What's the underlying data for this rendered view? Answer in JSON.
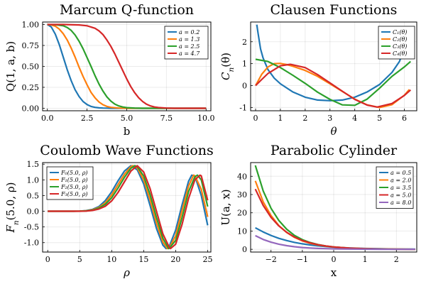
{
  "colors": [
    "#1f77b4",
    "#ff7f0e",
    "#2ca02c",
    "#d62728",
    "#9467bd"
  ],
  "chart_data": [
    {
      "type": "line",
      "title": "Marcum Q-function",
      "xlabel": "b",
      "ylabel": "Q(1, a, b)",
      "xlim": [
        -0.3,
        10.3
      ],
      "ylim": [
        -0.03,
        1.03
      ],
      "xticks": [
        0,
        2.5,
        5,
        7.5,
        10
      ],
      "xticklabels": [
        "0.0",
        "2.5",
        "5.0",
        "7.5",
        "10.0"
      ],
      "yticks": [
        0,
        0.25,
        0.5,
        0.75,
        1
      ],
      "yticklabels": [
        "0.00",
        "0.25",
        "0.50",
        "0.75",
        "1.00"
      ],
      "grid": true,
      "legend_position": "top-right",
      "series": [
        {
          "name": "a = 0.2",
          "x": [
            0,
            0.25,
            0.5,
            0.75,
            1,
            1.25,
            1.5,
            1.75,
            2,
            2.25,
            2.5,
            2.75,
            3,
            3.25,
            3.5,
            3.75,
            4,
            4.5,
            5,
            6,
            8,
            10
          ],
          "y": [
            1,
            0.97,
            0.885,
            0.76,
            0.61,
            0.46,
            0.33,
            0.22,
            0.14,
            0.08,
            0.045,
            0.022,
            0.011,
            0.005,
            0.002,
            0.001,
            0,
            0,
            0,
            0,
            0,
            0
          ]
        },
        {
          "name": "a = 1.3",
          "x": [
            0,
            0.25,
            0.5,
            0.75,
            1,
            1.25,
            1.5,
            1.75,
            2,
            2.25,
            2.5,
            2.75,
            3,
            3.25,
            3.5,
            3.75,
            4,
            4.5,
            5,
            6,
            8,
            10
          ],
          "y": [
            1,
            0.995,
            0.98,
            0.945,
            0.89,
            0.815,
            0.72,
            0.61,
            0.49,
            0.38,
            0.28,
            0.19,
            0.125,
            0.075,
            0.042,
            0.022,
            0.011,
            0.002,
            0,
            0,
            0,
            0
          ]
        },
        {
          "name": "a = 2.5",
          "x": [
            0,
            0.5,
            1,
            1.25,
            1.5,
            1.75,
            2,
            2.25,
            2.5,
            2.75,
            3,
            3.25,
            3.5,
            3.75,
            4,
            4.25,
            4.5,
            4.75,
            5,
            5.5,
            6,
            7,
            10
          ],
          "y": [
            1,
            0.998,
            0.985,
            0.965,
            0.93,
            0.875,
            0.8,
            0.71,
            0.605,
            0.5,
            0.39,
            0.29,
            0.205,
            0.135,
            0.085,
            0.05,
            0.028,
            0.015,
            0.007,
            0.002,
            0,
            0,
            0
          ]
        },
        {
          "name": "a = 4.7",
          "x": [
            0,
            1,
            2,
            2.5,
            3,
            3.25,
            3.5,
            3.75,
            4,
            4.25,
            4.5,
            4.75,
            5,
            5.25,
            5.5,
            5.75,
            6,
            6.25,
            6.5,
            6.75,
            7,
            7.5,
            8,
            10
          ],
          "y": [
            1,
            1,
            0.995,
            0.985,
            0.955,
            0.925,
            0.88,
            0.815,
            0.74,
            0.65,
            0.55,
            0.45,
            0.35,
            0.26,
            0.185,
            0.125,
            0.08,
            0.048,
            0.028,
            0.015,
            0.008,
            0.002,
            0,
            0
          ]
        }
      ]
    },
    {
      "type": "line",
      "title": "Clausen Functions",
      "xlabel": "θ",
      "ylabel": "C_n(θ)",
      "xlim": [
        -0.2,
        6.5
      ],
      "ylim": [
        -1.15,
        2.9
      ],
      "xticks": [
        0,
        1,
        2,
        3,
        4,
        5,
        6
      ],
      "xticklabels": [
        "0",
        "1",
        "2",
        "3",
        "4",
        "5",
        "6"
      ],
      "yticks": [
        -1,
        0,
        1,
        2
      ],
      "yticklabels": [
        "-1",
        "0",
        "1",
        "2"
      ],
      "grid": true,
      "legend_position": "top-right",
      "series": [
        {
          "name": "C₁(θ)",
          "x": [
            0.05,
            0.1,
            0.2,
            0.3,
            0.5,
            0.75,
            1,
            1.5,
            2,
            2.5,
            3,
            3.5,
            4,
            4.5,
            5,
            5.5,
            5.8,
            6,
            6.1,
            6.2
          ],
          "y": [
            2.78,
            2.38,
            1.67,
            1.26,
            0.73,
            0.34,
            0.08,
            -0.29,
            -0.53,
            -0.66,
            -0.69,
            -0.66,
            -0.53,
            -0.29,
            0.05,
            0.6,
            1.1,
            1.7,
            2.15,
            2.7
          ]
        },
        {
          "name": "C₂(θ)",
          "x": [
            0,
            0.25,
            0.5,
            0.75,
            1,
            1.25,
            1.5,
            2,
            2.5,
            3,
            3.5,
            4,
            4.5,
            5,
            5.5,
            6,
            6.2
          ],
          "y": [
            0,
            0.52,
            0.85,
            1.0,
            1.01,
            0.96,
            0.88,
            0.69,
            0.42,
            0.08,
            -0.27,
            -0.62,
            -0.88,
            -1.0,
            -0.87,
            -0.44,
            -0.18
          ]
        },
        {
          "name": "C₃(θ)",
          "x": [
            0,
            0.5,
            1,
            1.5,
            2,
            2.5,
            3,
            3.5,
            4,
            4.5,
            5,
            5.5,
            6,
            6.25
          ],
          "y": [
            1.2,
            1.1,
            0.82,
            0.47,
            0.1,
            -0.3,
            -0.63,
            -0.88,
            -0.9,
            -0.62,
            -0.12,
            0.42,
            0.85,
            1.1
          ]
        },
        {
          "name": "C₄(θ)",
          "x": [
            0,
            0.25,
            0.5,
            1,
            1.4,
            2,
            2.5,
            3,
            3.5,
            4,
            4.5,
            4.9,
            5.5,
            6,
            6.25
          ],
          "y": [
            0,
            0.28,
            0.55,
            0.9,
            0.97,
            0.82,
            0.5,
            0.12,
            -0.26,
            -0.63,
            -0.89,
            -0.98,
            -0.82,
            -0.45,
            -0.2
          ]
        }
      ]
    },
    {
      "type": "line",
      "title": "Coulomb Wave Functions",
      "xlabel": "ρ",
      "ylabel": "F_n(5.0, ρ)",
      "xlim": [
        -0.8,
        25.5
      ],
      "ylim": [
        -1.3,
        1.55
      ],
      "xticks": [
        0,
        5,
        10,
        15,
        20,
        25
      ],
      "xticklabels": [
        "0",
        "5",
        "10",
        "15",
        "20",
        "25"
      ],
      "yticks": [
        -1,
        -0.5,
        0,
        0.5,
        1,
        1.5
      ],
      "yticklabels": [
        "-1.0",
        "-0.5",
        "0.0",
        "0.5",
        "1.0",
        "1.5"
      ],
      "grid": true,
      "legend_position": "top-left",
      "series": [
        {
          "name": "F₀(5.0, ρ)",
          "x": [
            0,
            2,
            4,
            5,
            6,
            7,
            8,
            9,
            10,
            11,
            12,
            13,
            14,
            15,
            16,
            17,
            18,
            18.5,
            19,
            20,
            21,
            22,
            22.5,
            23,
            24,
            25
          ],
          "y": [
            0,
            0,
            0,
            0.005,
            0.02,
            0.06,
            0.15,
            0.34,
            0.62,
            0.97,
            1.28,
            1.45,
            1.32,
            0.87,
            0.18,
            -0.55,
            -1.08,
            -1.19,
            -1.12,
            -0.6,
            0.2,
            0.95,
            1.15,
            1.12,
            0.5,
            -0.45
          ]
        },
        {
          "name": "F₁(5.0, ρ)",
          "x": [
            0,
            2,
            4,
            5,
            6,
            7,
            8,
            9,
            10,
            11,
            12,
            13,
            13.3,
            14,
            15,
            16,
            17,
            18,
            18.7,
            19,
            20,
            21,
            22,
            22.8,
            23,
            24,
            25
          ],
          "y": [
            0,
            0,
            0,
            0.003,
            0.015,
            0.045,
            0.12,
            0.27,
            0.52,
            0.85,
            1.18,
            1.42,
            1.45,
            1.38,
            1.0,
            0.36,
            -0.38,
            -0.98,
            -1.19,
            -1.17,
            -0.78,
            0.02,
            0.8,
            1.15,
            1.13,
            0.7,
            -0.18
          ]
        },
        {
          "name": "F₂(5.0, ρ)",
          "x": [
            0,
            2,
            4,
            5,
            6,
            7,
            8,
            9,
            10,
            11,
            12,
            13,
            13.6,
            14,
            15,
            16,
            17,
            18,
            18.9,
            19,
            20,
            21,
            22,
            23,
            23.4,
            24,
            25
          ],
          "y": [
            0,
            0,
            0,
            0.002,
            0.01,
            0.035,
            0.1,
            0.22,
            0.43,
            0.74,
            1.08,
            1.37,
            1.45,
            1.42,
            1.12,
            0.53,
            -0.2,
            -0.86,
            -1.19,
            -1.18,
            -0.93,
            -0.2,
            0.62,
            1.1,
            1.15,
            1.0,
            0.15
          ]
        },
        {
          "name": "F₃(5.0, ρ)",
          "x": [
            0,
            2,
            4,
            5,
            6,
            7,
            8,
            9,
            10,
            11,
            12,
            13,
            14,
            15,
            16,
            17,
            18,
            19,
            19.2,
            20,
            21,
            22,
            23,
            23.8,
            24,
            25
          ],
          "y": [
            0,
            0,
            0,
            0.001,
            0.006,
            0.025,
            0.07,
            0.16,
            0.33,
            0.6,
            0.94,
            1.28,
            1.45,
            1.25,
            0.72,
            0.0,
            -0.72,
            -1.15,
            -1.19,
            -1.05,
            -0.42,
            0.4,
            1.0,
            1.15,
            1.13,
            0.35
          ]
        }
      ]
    },
    {
      "type": "line",
      "title": "Parabolic Cylinder",
      "xlabel": "x",
      "ylabel": "U(a, x)",
      "xlim": [
        -2.65,
        2.65
      ],
      "ylim": [
        -1.5,
        47.5
      ],
      "xticks": [
        -2,
        -1,
        0,
        1,
        2
      ],
      "xticklabels": [
        "−2",
        "−1",
        "0",
        "1",
        "2"
      ],
      "yticks": [
        0,
        10,
        20,
        30,
        40
      ],
      "yticklabels": [
        "0",
        "10",
        "20",
        "30",
        "40"
      ],
      "grid": true,
      "legend_position": "top-right",
      "series": [
        {
          "name": "a = 0.5",
          "x": [
            -2.5,
            -2.25,
            -2,
            -1.75,
            -1.5,
            -1.25,
            -1,
            -0.75,
            -0.5,
            -0.25,
            0,
            0.5,
            1,
            1.5,
            2,
            2.6
          ],
          "y": [
            11.8,
            9.5,
            7.6,
            6.0,
            4.8,
            3.8,
            3.0,
            2.4,
            1.9,
            1.5,
            1.2,
            0.75,
            0.45,
            0.27,
            0.15,
            0.08
          ]
        },
        {
          "name": "a = 2.0",
          "x": [
            -2.5,
            -2.25,
            -2,
            -1.75,
            -1.5,
            -1.25,
            -1,
            -0.75,
            -0.5,
            -0.25,
            0,
            0.5,
            1,
            1.5,
            2,
            2.6
          ],
          "y": [
            37.5,
            26,
            18.5,
            13,
            9.2,
            6.5,
            4.6,
            3.3,
            2.4,
            1.7,
            1.25,
            0.65,
            0.33,
            0.17,
            0.08,
            0.03
          ]
        },
        {
          "name": "a = 3.5",
          "x": [
            -2.5,
            -2.25,
            -2,
            -1.75,
            -1.5,
            -1.25,
            -1,
            -0.75,
            -0.5,
            -0.25,
            0,
            0.5,
            1,
            1.5,
            2,
            2.6
          ],
          "y": [
            46,
            32,
            22.5,
            15.8,
            11,
            7.6,
            5.3,
            3.7,
            2.6,
            1.8,
            1.25,
            0.6,
            0.28,
            0.13,
            0.06,
            0.02
          ]
        },
        {
          "name": "a = 5.0",
          "x": [
            -2.5,
            -2.25,
            -2,
            -1.75,
            -1.5,
            -1.25,
            -1,
            -0.75,
            -0.5,
            -0.25,
            0,
            0.5,
            1,
            1.5,
            2,
            2.6
          ],
          "y": [
            33,
            24,
            17.5,
            12.8,
            9.3,
            6.7,
            4.8,
            3.5,
            2.5,
            1.8,
            1.3,
            0.65,
            0.32,
            0.15,
            0.07,
            0.02
          ]
        },
        {
          "name": "a = 8.0",
          "x": [
            -2.5,
            -2.25,
            -2,
            -1.75,
            -1.5,
            -1.25,
            -1,
            -0.75,
            -0.5,
            -0.25,
            0,
            0.5,
            1,
            1.5,
            2,
            2.6
          ],
          "y": [
            7.5,
            5.4,
            3.9,
            2.8,
            2.0,
            1.4,
            1.0,
            0.7,
            0.5,
            0.35,
            0.25,
            0.12,
            0.06,
            0.03,
            0.01,
            0
          ]
        }
      ]
    }
  ]
}
